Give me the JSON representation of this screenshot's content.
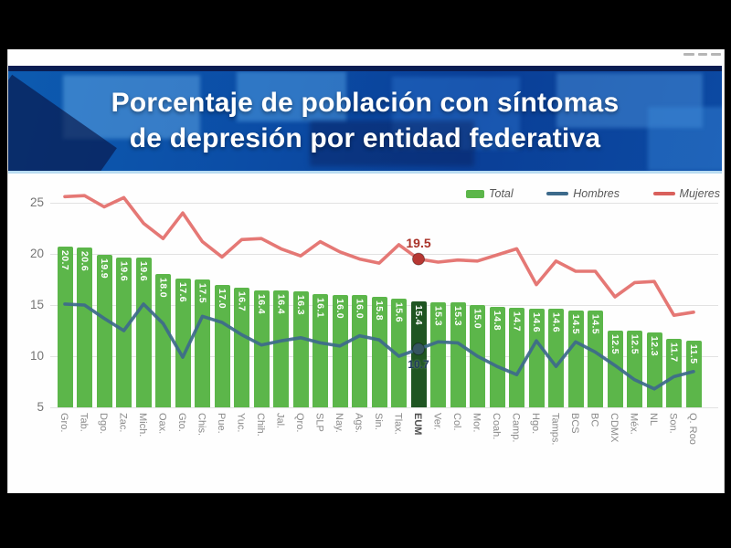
{
  "banner": {
    "title_line1": "Porcentaje de población con síntomas",
    "title_line2": "de depresión por entidad federativa",
    "bg_color": "#0b4da6",
    "top_strip_color": "#091d52",
    "bottom_strip_color": "#b9dcf2"
  },
  "top_strip": {
    "marks_color": "#b5b5b5"
  },
  "legend": [
    {
      "label": "Total",
      "swatch": "bar",
      "color": "#5cb64a"
    },
    {
      "label": "Hombres",
      "swatch": "line",
      "color": "#3d6a8b"
    },
    {
      "label": "Mujeres",
      "swatch": "line",
      "color": "#d9605c"
    }
  ],
  "chart_data": {
    "type": "bar",
    "title": "Porcentaje de población con síntomas de depresión por entidad federativa",
    "xlabel": "",
    "ylabel": "",
    "yticks": [
      5,
      10,
      15,
      20,
      25
    ],
    "ylim": [
      5,
      27
    ],
    "grid": true,
    "legend_position": "top-right",
    "highlight_category": "EUM",
    "categories": [
      "Gro.",
      "Tab.",
      "Dgo.",
      "Zac.",
      "Mich.",
      "Oax.",
      "Gto.",
      "Chis.",
      "Pue.",
      "Yuc.",
      "Chih.",
      "Jal.",
      "Qro.",
      "SLP",
      "Nay.",
      "Ags.",
      "Sin.",
      "Tlax.",
      "EUM",
      "Ver.",
      "Col.",
      "Mor.",
      "Coah.",
      "Camp.",
      "Hgo.",
      "Tamps.",
      "BCS",
      "BC",
      "CDMX",
      "Méx.",
      "NL",
      "Son.",
      "Q. Roo"
    ],
    "series": [
      {
        "name": "Total",
        "type": "bar",
        "color": "#5cb64a",
        "highlight_color": "#1f5522",
        "value_label_color": "#ffffff",
        "values": [
          20.7,
          20.6,
          19.9,
          19.6,
          19.6,
          18.0,
          17.6,
          17.5,
          17.0,
          16.7,
          16.4,
          16.4,
          16.3,
          16.1,
          16.0,
          16.0,
          15.8,
          15.6,
          15.4,
          15.3,
          15.3,
          15.0,
          14.8,
          14.7,
          14.6,
          14.6,
          14.5,
          14.5,
          12.5,
          12.5,
          12.3,
          11.7,
          11.5
        ]
      },
      {
        "name": "Hombres",
        "type": "line",
        "color": "#3d6a8b",
        "values": [
          15.1,
          15.0,
          13.7,
          12.5,
          15.1,
          13.2,
          9.9,
          13.9,
          13.3,
          12.1,
          11.1,
          11.5,
          11.8,
          11.3,
          11.0,
          12.0,
          11.6,
          10.0,
          10.7,
          11.4,
          11.3,
          10.0,
          9.0,
          8.2,
          11.5,
          9.0,
          11.4,
          10.4,
          9.1,
          7.7,
          6.8,
          8.0,
          8.5
        ]
      },
      {
        "name": "Mujeres",
        "type": "line",
        "color": "#e36e6a",
        "values": [
          25.6,
          25.7,
          24.6,
          25.5,
          23.0,
          21.5,
          24.0,
          21.2,
          19.7,
          21.4,
          21.5,
          20.5,
          19.8,
          21.2,
          20.2,
          19.5,
          19.1,
          20.9,
          19.5,
          19.2,
          19.4,
          19.3,
          19.9,
          20.5,
          17.0,
          19.3,
          18.3,
          18.3,
          15.8,
          17.2,
          17.3,
          14.0,
          14.3
        ]
      }
    ],
    "annotations": [
      {
        "series": "Mujeres",
        "category": "EUM",
        "value": 19.5,
        "text": "19.5",
        "text_color": "#a93228",
        "marker_color": "#b63732",
        "position": "above"
      },
      {
        "series": "Hombres",
        "category": "EUM",
        "value": 10.7,
        "text": "10.7",
        "text_color": "#1d3b5a",
        "marker_color": "#35555f",
        "position": "below"
      }
    ]
  }
}
